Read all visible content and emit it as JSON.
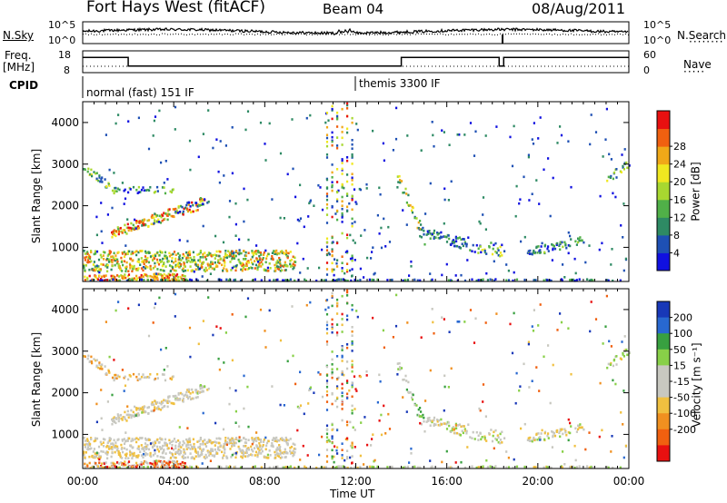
{
  "header": {
    "station": "Fort Hays West (fitACF)",
    "beam": "Beam 04",
    "date": "08/Aug/2011"
  },
  "noise_panel": {
    "left_label": "N.Sky",
    "right_label": "N.Search",
    "left_ticks": [
      "10^5",
      "10^0"
    ],
    "right_ticks": [
      "10^5",
      "10^0"
    ]
  },
  "freq_panel": {
    "left_label_line1": "Freq.",
    "left_label_line2": "[MHz]",
    "right_label": "Nave",
    "left_ticks": [
      "18",
      "8"
    ],
    "right_ticks": [
      "60",
      "0"
    ]
  },
  "cpid_panel": {
    "label": "CPID",
    "modes": [
      "normal (fast) 151 IF",
      "themis 3300 IF"
    ]
  },
  "chart_data": [
    {
      "type": "heatmap",
      "title": "Power",
      "xlabel": "Time UT",
      "ylabel": "Slant Range [km]",
      "x_ticks": [
        "00:00",
        "04:00",
        "08:00",
        "12:00",
        "16:00",
        "20:00",
        "00:00"
      ],
      "y_ticks": [
        1000,
        2000,
        3000,
        4000
      ],
      "xlim_hours": [
        0,
        24
      ],
      "ylim_km": [
        180,
        4500
      ],
      "colorbar": {
        "label": "Power [dB]",
        "ticks": [
          "4",
          "8",
          "12",
          "16",
          "20",
          "24",
          "28"
        ],
        "colors": [
          "#1010e0",
          "#1e50b4",
          "#2e8a64",
          "#50b048",
          "#a8d830",
          "#f0e820",
          "#f0a818",
          "#f06010",
          "#e81010"
        ]
      }
    },
    {
      "type": "heatmap",
      "title": "Velocity",
      "xlabel": "Time UT",
      "ylabel": "Slant Range [km]",
      "x_ticks": [
        "00:00",
        "04:00",
        "08:00",
        "12:00",
        "16:00",
        "20:00",
        "00:00"
      ],
      "y_ticks": [
        1000,
        2000,
        3000,
        4000
      ],
      "xlim_hours": [
        0,
        24
      ],
      "ylim_km": [
        180,
        4500
      ],
      "colorbar": {
        "label": "Velocity [m s⁻¹]",
        "ticks": [
          "200",
          "100",
          "50",
          "15",
          "-15",
          "-50",
          "-100",
          "-200"
        ],
        "colors": [
          "#1838b8",
          "#2868d0",
          "#38a040",
          "#88d048",
          "#c8c8c0",
          "#c8c8c0",
          "#f0c040",
          "#f09020",
          "#f06010",
          "#e81010"
        ]
      }
    }
  ]
}
